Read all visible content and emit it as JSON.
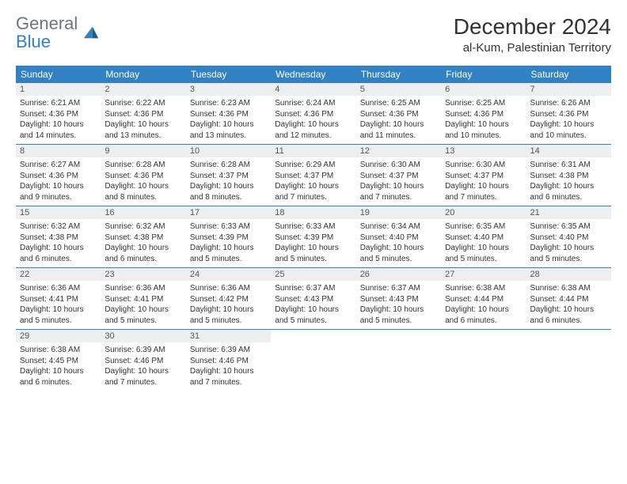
{
  "logo": {
    "line1": "General",
    "line2": "Blue"
  },
  "colors": {
    "brand_blue": "#3182c4",
    "header_bg": "#3182c4",
    "daynum_bg": "#eceeef",
    "grey_text": "#6c7680",
    "text": "#333333"
  },
  "title": "December 2024",
  "location": "al-Kum, Palestinian Territory",
  "weekdays": [
    "Sunday",
    "Monday",
    "Tuesday",
    "Wednesday",
    "Thursday",
    "Friday",
    "Saturday"
  ],
  "weeks": [
    [
      {
        "n": "1",
        "sr": "Sunrise: 6:21 AM",
        "ss": "Sunset: 4:36 PM",
        "d1": "Daylight: 10 hours",
        "d2": "and 14 minutes."
      },
      {
        "n": "2",
        "sr": "Sunrise: 6:22 AM",
        "ss": "Sunset: 4:36 PM",
        "d1": "Daylight: 10 hours",
        "d2": "and 13 minutes."
      },
      {
        "n": "3",
        "sr": "Sunrise: 6:23 AM",
        "ss": "Sunset: 4:36 PM",
        "d1": "Daylight: 10 hours",
        "d2": "and 13 minutes."
      },
      {
        "n": "4",
        "sr": "Sunrise: 6:24 AM",
        "ss": "Sunset: 4:36 PM",
        "d1": "Daylight: 10 hours",
        "d2": "and 12 minutes."
      },
      {
        "n": "5",
        "sr": "Sunrise: 6:25 AM",
        "ss": "Sunset: 4:36 PM",
        "d1": "Daylight: 10 hours",
        "d2": "and 11 minutes."
      },
      {
        "n": "6",
        "sr": "Sunrise: 6:25 AM",
        "ss": "Sunset: 4:36 PM",
        "d1": "Daylight: 10 hours",
        "d2": "and 10 minutes."
      },
      {
        "n": "7",
        "sr": "Sunrise: 6:26 AM",
        "ss": "Sunset: 4:36 PM",
        "d1": "Daylight: 10 hours",
        "d2": "and 10 minutes."
      }
    ],
    [
      {
        "n": "8",
        "sr": "Sunrise: 6:27 AM",
        "ss": "Sunset: 4:36 PM",
        "d1": "Daylight: 10 hours",
        "d2": "and 9 minutes."
      },
      {
        "n": "9",
        "sr": "Sunrise: 6:28 AM",
        "ss": "Sunset: 4:36 PM",
        "d1": "Daylight: 10 hours",
        "d2": "and 8 minutes."
      },
      {
        "n": "10",
        "sr": "Sunrise: 6:28 AM",
        "ss": "Sunset: 4:37 PM",
        "d1": "Daylight: 10 hours",
        "d2": "and 8 minutes."
      },
      {
        "n": "11",
        "sr": "Sunrise: 6:29 AM",
        "ss": "Sunset: 4:37 PM",
        "d1": "Daylight: 10 hours",
        "d2": "and 7 minutes."
      },
      {
        "n": "12",
        "sr": "Sunrise: 6:30 AM",
        "ss": "Sunset: 4:37 PM",
        "d1": "Daylight: 10 hours",
        "d2": "and 7 minutes."
      },
      {
        "n": "13",
        "sr": "Sunrise: 6:30 AM",
        "ss": "Sunset: 4:37 PM",
        "d1": "Daylight: 10 hours",
        "d2": "and 7 minutes."
      },
      {
        "n": "14",
        "sr": "Sunrise: 6:31 AM",
        "ss": "Sunset: 4:38 PM",
        "d1": "Daylight: 10 hours",
        "d2": "and 6 minutes."
      }
    ],
    [
      {
        "n": "15",
        "sr": "Sunrise: 6:32 AM",
        "ss": "Sunset: 4:38 PM",
        "d1": "Daylight: 10 hours",
        "d2": "and 6 minutes."
      },
      {
        "n": "16",
        "sr": "Sunrise: 6:32 AM",
        "ss": "Sunset: 4:38 PM",
        "d1": "Daylight: 10 hours",
        "d2": "and 6 minutes."
      },
      {
        "n": "17",
        "sr": "Sunrise: 6:33 AM",
        "ss": "Sunset: 4:39 PM",
        "d1": "Daylight: 10 hours",
        "d2": "and 5 minutes."
      },
      {
        "n": "18",
        "sr": "Sunrise: 6:33 AM",
        "ss": "Sunset: 4:39 PM",
        "d1": "Daylight: 10 hours",
        "d2": "and 5 minutes."
      },
      {
        "n": "19",
        "sr": "Sunrise: 6:34 AM",
        "ss": "Sunset: 4:40 PM",
        "d1": "Daylight: 10 hours",
        "d2": "and 5 minutes."
      },
      {
        "n": "20",
        "sr": "Sunrise: 6:35 AM",
        "ss": "Sunset: 4:40 PM",
        "d1": "Daylight: 10 hours",
        "d2": "and 5 minutes."
      },
      {
        "n": "21",
        "sr": "Sunrise: 6:35 AM",
        "ss": "Sunset: 4:40 PM",
        "d1": "Daylight: 10 hours",
        "d2": "and 5 minutes."
      }
    ],
    [
      {
        "n": "22",
        "sr": "Sunrise: 6:36 AM",
        "ss": "Sunset: 4:41 PM",
        "d1": "Daylight: 10 hours",
        "d2": "and 5 minutes."
      },
      {
        "n": "23",
        "sr": "Sunrise: 6:36 AM",
        "ss": "Sunset: 4:41 PM",
        "d1": "Daylight: 10 hours",
        "d2": "and 5 minutes."
      },
      {
        "n": "24",
        "sr": "Sunrise: 6:36 AM",
        "ss": "Sunset: 4:42 PM",
        "d1": "Daylight: 10 hours",
        "d2": "and 5 minutes."
      },
      {
        "n": "25",
        "sr": "Sunrise: 6:37 AM",
        "ss": "Sunset: 4:43 PM",
        "d1": "Daylight: 10 hours",
        "d2": "and 5 minutes."
      },
      {
        "n": "26",
        "sr": "Sunrise: 6:37 AM",
        "ss": "Sunset: 4:43 PM",
        "d1": "Daylight: 10 hours",
        "d2": "and 5 minutes."
      },
      {
        "n": "27",
        "sr": "Sunrise: 6:38 AM",
        "ss": "Sunset: 4:44 PM",
        "d1": "Daylight: 10 hours",
        "d2": "and 6 minutes."
      },
      {
        "n": "28",
        "sr": "Sunrise: 6:38 AM",
        "ss": "Sunset: 4:44 PM",
        "d1": "Daylight: 10 hours",
        "d2": "and 6 minutes."
      }
    ],
    [
      {
        "n": "29",
        "sr": "Sunrise: 6:38 AM",
        "ss": "Sunset: 4:45 PM",
        "d1": "Daylight: 10 hours",
        "d2": "and 6 minutes."
      },
      {
        "n": "30",
        "sr": "Sunrise: 6:39 AM",
        "ss": "Sunset: 4:46 PM",
        "d1": "Daylight: 10 hours",
        "d2": "and 7 minutes."
      },
      {
        "n": "31",
        "sr": "Sunrise: 6:39 AM",
        "ss": "Sunset: 4:46 PM",
        "d1": "Daylight: 10 hours",
        "d2": "and 7 minutes."
      },
      {
        "empty": true
      },
      {
        "empty": true
      },
      {
        "empty": true
      },
      {
        "empty": true
      }
    ]
  ]
}
